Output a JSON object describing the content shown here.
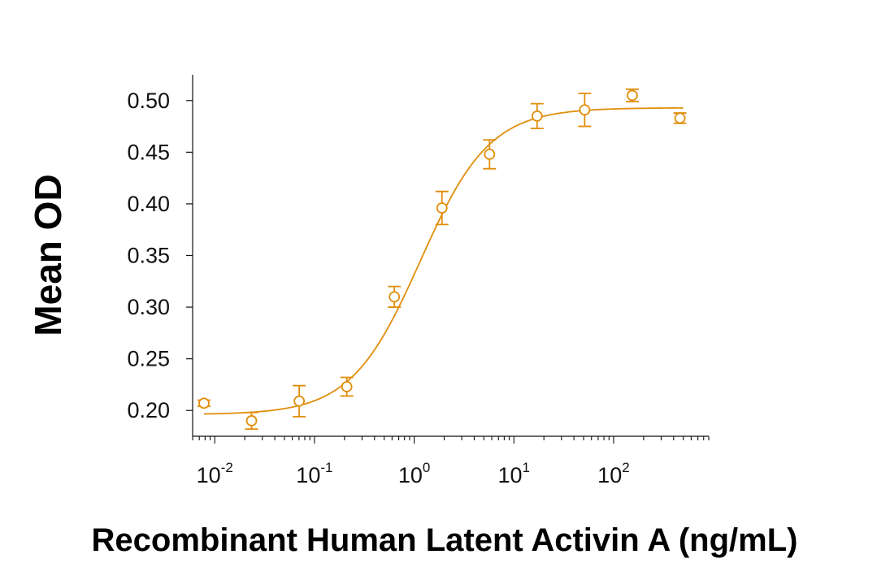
{
  "chart_data": {
    "type": "scatter",
    "title": "",
    "xlabel": "Recombinant Human Latent Activin A (ng/mL)",
    "ylabel": "Mean OD",
    "xscale": "log",
    "xlim": [
      0.006,
      900
    ],
    "ylim": [
      0.175,
      0.525
    ],
    "yticks": [
      0.2,
      0.25,
      0.3,
      0.35,
      0.4,
      0.45,
      0.5
    ],
    "ytick_labels": [
      "0.20",
      "0.25",
      "0.30",
      "0.35",
      "0.40",
      "0.45",
      "0.50"
    ],
    "xticks": [
      0.01,
      0.1,
      1,
      10,
      100
    ],
    "xtick_labels": [
      {
        "base": "10",
        "exp": "-2"
      },
      {
        "base": "10",
        "exp": "-1"
      },
      {
        "base": "10",
        "exp": "0"
      },
      {
        "base": "10",
        "exp": "1"
      },
      {
        "base": "10",
        "exp": "2"
      }
    ],
    "color": "#E08E0B",
    "grid": false,
    "legend": "none",
    "series": [
      {
        "x": [
          0.0078,
          0.0234,
          0.0703,
          0.211,
          0.633,
          1.9,
          5.7,
          17.1,
          51.3,
          154,
          463
        ],
        "y": [
          0.207,
          0.19,
          0.209,
          0.223,
          0.31,
          0.396,
          0.448,
          0.485,
          0.491,
          0.505,
          0.483
        ],
        "err": [
          0.003,
          0.008,
          0.015,
          0.009,
          0.01,
          0.016,
          0.014,
          0.012,
          0.016,
          0.006,
          0.005
        ]
      }
    ],
    "fit": {
      "model": "4PL",
      "bottom": 0.196,
      "top": 0.493,
      "ec50": 1.15,
      "hill": 1.25,
      "x_range": [
        0.0078,
        500
      ]
    }
  }
}
